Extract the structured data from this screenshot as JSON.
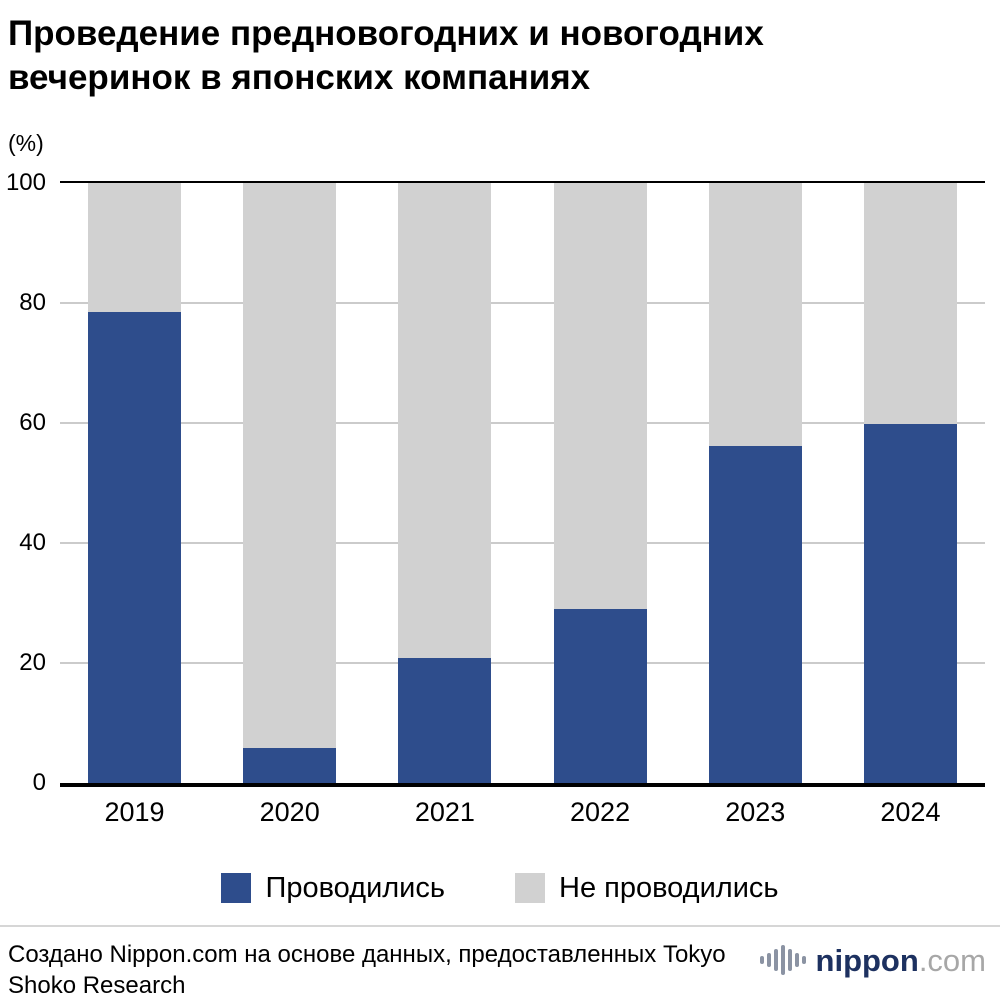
{
  "title_lines": [
    "Проведение предновогодних и новогодних",
    "вечеринок в японских компаниях"
  ],
  "unit_label": "(%)",
  "chart_data": {
    "type": "bar",
    "stacked": true,
    "title": "Проведение предновогодних и новогодних вечеринок в японских компаниях",
    "xlabel": "",
    "ylabel": "(%)",
    "categories": [
      "2019",
      "2020",
      "2021",
      "2022",
      "2023",
      "2024"
    ],
    "series": [
      {
        "name": "Проводились",
        "color": "#2e4d8c",
        "values": [
          78.5,
          5.7,
          20.7,
          28.9,
          56.1,
          59.7
        ]
      },
      {
        "name": "Не проводились",
        "color": "#d1d1d1",
        "values": [
          21.5,
          94.3,
          79.3,
          71.1,
          43.9,
          40.3
        ]
      }
    ],
    "ylim": [
      0,
      100
    ],
    "yticks": [
      0,
      20,
      40,
      60,
      80,
      100
    ],
    "grid": true,
    "legend_position": "bottom"
  },
  "footer": {
    "source_text": "Создано Nippon.com на основе данных, предоставленных Tokyo Shoko Research",
    "logo": {
      "name": "nippon",
      "suffix": ".com"
    }
  },
  "colors": {
    "bar_blue": "#2e4d8c",
    "bar_gray": "#d1d1d1",
    "logo_navy": "#1d3160",
    "logo_gray": "#a7a7a7"
  }
}
